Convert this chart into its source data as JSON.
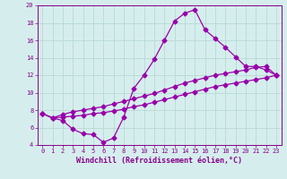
{
  "title": "",
  "xlabel": "Windchill (Refroidissement éolien,°C)",
  "ylabel": "",
  "bg_color": "#d5eeed",
  "grid_color": "#b8d9d5",
  "line_color": "#9900aa",
  "marker": "D",
  "xlim": [
    -0.5,
    23.5
  ],
  "ylim": [
    4,
    20
  ],
  "yticks": [
    4,
    6,
    8,
    10,
    12,
    14,
    16,
    18,
    20
  ],
  "xticks": [
    0,
    1,
    2,
    3,
    4,
    5,
    6,
    7,
    8,
    9,
    10,
    11,
    12,
    13,
    14,
    15,
    16,
    17,
    18,
    19,
    20,
    21,
    22,
    23
  ],
  "line1_x": [
    0,
    1,
    2,
    3,
    4,
    5,
    6,
    7,
    8,
    9,
    10,
    11,
    12,
    13,
    14,
    15,
    16,
    17,
    18,
    19,
    20,
    21,
    22,
    23
  ],
  "line1_y": [
    7.6,
    7.1,
    6.8,
    5.8,
    5.3,
    5.2,
    4.3,
    4.8,
    7.2,
    10.5,
    12.0,
    13.8,
    16.0,
    18.2,
    19.1,
    19.5,
    17.2,
    16.2,
    15.2,
    14.1,
    13.0,
    13.0,
    12.6,
    12.0
  ],
  "line2_x": [
    0,
    1,
    2,
    3,
    4,
    5,
    6,
    7,
    8,
    9,
    10,
    11,
    12,
    13,
    14,
    15,
    16,
    17,
    18,
    19,
    20,
    21,
    22,
    23
  ],
  "line2_y": [
    7.6,
    7.1,
    7.5,
    7.8,
    8.0,
    8.2,
    8.4,
    8.7,
    9.0,
    9.3,
    9.6,
    9.9,
    10.3,
    10.7,
    11.1,
    11.4,
    11.7,
    12.0,
    12.2,
    12.4,
    12.6,
    12.9,
    13.0,
    12.0
  ],
  "line3_x": [
    0,
    1,
    2,
    3,
    4,
    5,
    6,
    7,
    8,
    9,
    10,
    11,
    12,
    13,
    14,
    15,
    16,
    17,
    18,
    19,
    20,
    21,
    22,
    23
  ],
  "line3_y": [
    7.6,
    7.1,
    7.2,
    7.3,
    7.4,
    7.6,
    7.7,
    7.9,
    8.1,
    8.4,
    8.6,
    8.9,
    9.2,
    9.5,
    9.8,
    10.1,
    10.4,
    10.7,
    10.9,
    11.1,
    11.3,
    11.5,
    11.7,
    12.0
  ],
  "marker_size": 2.5,
  "line_width": 0.9,
  "tick_fontsize": 5.0,
  "label_fontsize": 6.0,
  "tick_color": "#880088",
  "label_color": "#880088"
}
